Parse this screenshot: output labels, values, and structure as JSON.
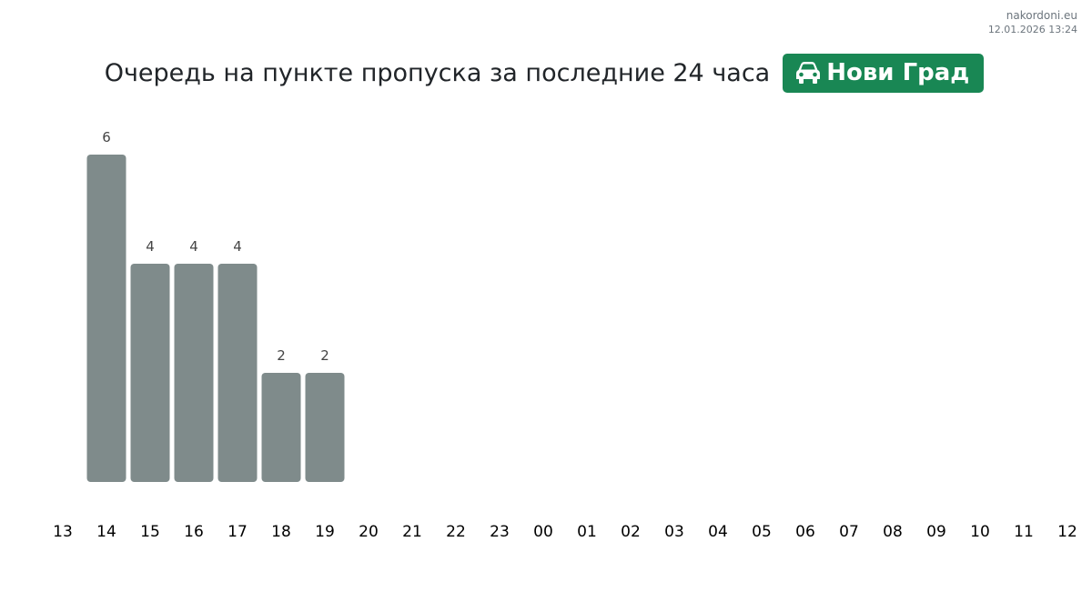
{
  "site": {
    "name": "nakordoni.eu",
    "timestamp": "12.01.2026 13:24"
  },
  "header": {
    "title": "Очередь на пункте пропуска за последние 24 часа",
    "checkpoint": "Нови Град",
    "checkpoint_icon": "car-icon"
  },
  "colors": {
    "bar": "#7f8b8b",
    "badge": "#198754",
    "title": "#212529",
    "value_label": "#444444"
  },
  "chart_data": {
    "type": "bar",
    "title": "",
    "xlabel": "",
    "ylabel": "",
    "categories": [
      "13",
      "14",
      "15",
      "16",
      "17",
      "18",
      "19",
      "20",
      "21",
      "22",
      "23",
      "00",
      "01",
      "02",
      "03",
      "04",
      "05",
      "06",
      "07",
      "08",
      "09",
      "10",
      "11",
      "12"
    ],
    "values": [
      null,
      6,
      4,
      4,
      4,
      2,
      2,
      null,
      null,
      null,
      null,
      null,
      null,
      null,
      null,
      null,
      null,
      null,
      null,
      null,
      null,
      null,
      null,
      null
    ],
    "ylim": [
      0,
      6
    ],
    "grid": false,
    "legend": "none"
  }
}
